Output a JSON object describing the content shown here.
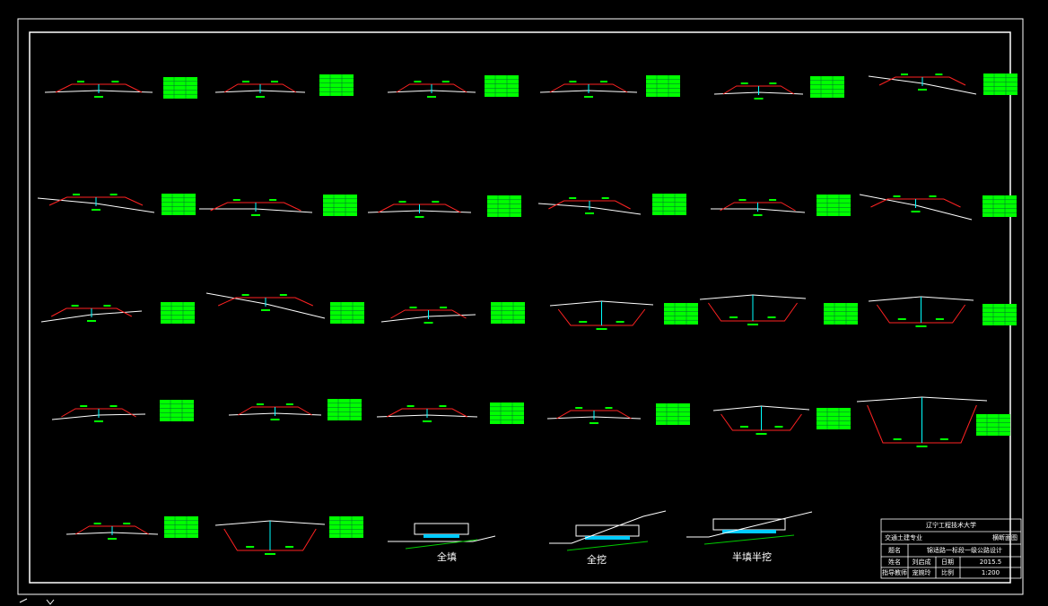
{
  "labels": {
    "fill": "全填",
    "cut": "全挖",
    "half": "半填半挖"
  },
  "title_block": {
    "school": "辽宁工程技术大学",
    "major": "交通土建专业",
    "drawing": "横断面图",
    "rows": [
      [
        "题名",
        "锦适路一标段一级公路设计"
      ],
      [
        "姓名",
        "刘启成",
        "日期",
        "2015.5"
      ],
      [
        "指导教师",
        "宠婉玲",
        "比例",
        "1:200"
      ]
    ]
  }
}
